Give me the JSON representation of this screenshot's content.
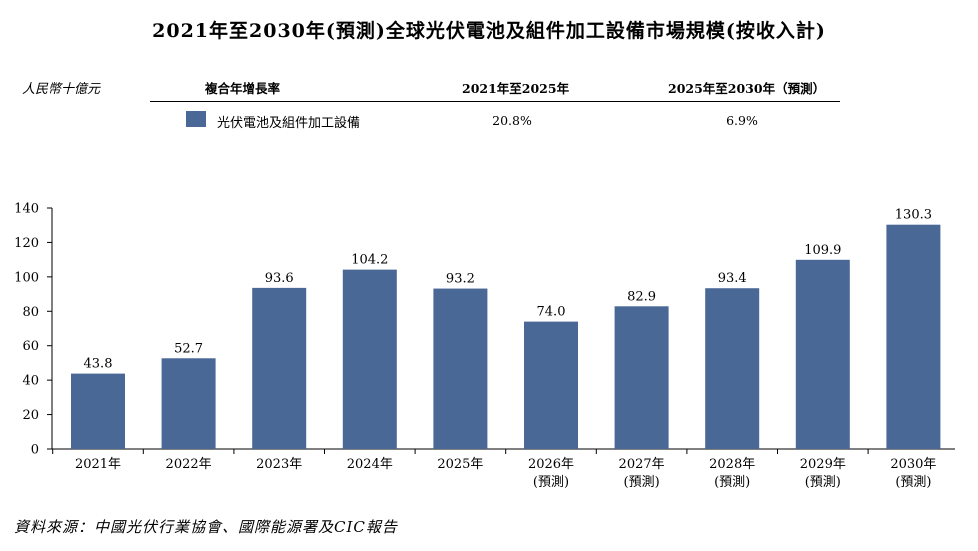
{
  "title": "2021年至2030年(預測)全球光伏電池及組件加工設備市場規模(按收入計)",
  "unit": "人民幣十億元",
  "cagr_table": {
    "header_label": "複合年增長率",
    "period1_label": "2021年至2025年",
    "period2_label": "2025年至2030年（預測）",
    "series_label": "光伏電池及組件加工設備",
    "period1_value": "20.8%",
    "period2_value": "6.9%"
  },
  "source": "資料來源：中國光伏行業協會、國際能源署及CIC報告",
  "colors": {
    "bar": "#4a6896",
    "axis": "#000000"
  },
  "chart_data": {
    "type": "bar",
    "categories": [
      "2021年",
      "2022年",
      "2023年",
      "2024年",
      "2025年",
      "2026年",
      "2027年",
      "2028年",
      "2029年",
      "2030年"
    ],
    "category_sublabels": [
      "",
      "",
      "",
      "",
      "",
      "(預測)",
      "(預測)",
      "(預測)",
      "(預測)",
      "(預測)"
    ],
    "values": [
      43.8,
      52.7,
      93.6,
      104.2,
      93.2,
      74.0,
      82.9,
      93.4,
      109.9,
      130.3
    ],
    "value_labels": [
      "43.8",
      "52.7",
      "93.6",
      "104.2",
      "93.2",
      "74.0",
      "82.9",
      "93.4",
      "109.9",
      "130.3"
    ],
    "yticks": [
      0,
      20,
      40,
      60,
      80,
      100,
      120,
      140
    ],
    "ylim": [
      0,
      140
    ],
    "grid": false,
    "legend": "top"
  }
}
